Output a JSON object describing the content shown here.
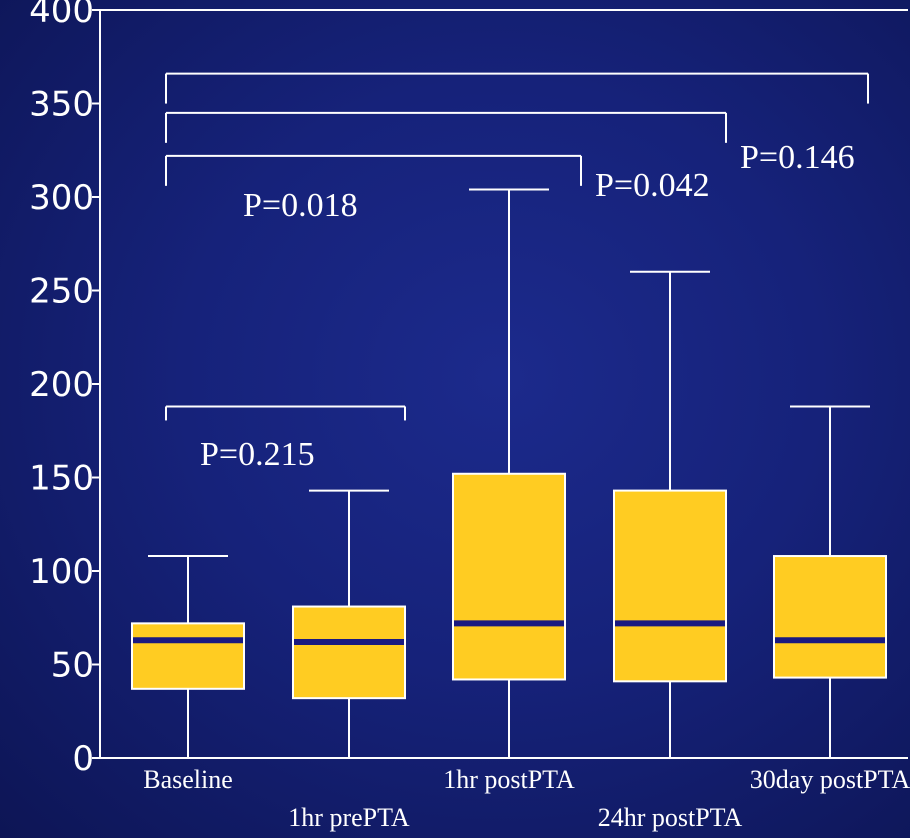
{
  "chart_data": {
    "type": "boxplot",
    "ylim": [
      0,
      400
    ],
    "yticks": [
      "0",
      "50",
      "100",
      "150",
      "200",
      "250",
      "300",
      "350",
      "400"
    ],
    "ytick_values": [
      0,
      50,
      100,
      150,
      200,
      250,
      300,
      350,
      400
    ],
    "categories": [
      "Baseline",
      "1hr prePTA",
      "1hr postPTA",
      "24hr postPTA",
      "30day postPTA"
    ],
    "boxes": [
      {
        "min": 0,
        "q1": 37,
        "median": 63,
        "q3": 72,
        "max": 108
      },
      {
        "min": 0,
        "q1": 32,
        "median": 62,
        "q3": 81,
        "max": 143
      },
      {
        "min": 0,
        "q1": 42,
        "median": 72,
        "q3": 152,
        "max": 304
      },
      {
        "min": 0,
        "q1": 41,
        "median": 72,
        "q3": 143,
        "max": 260
      },
      {
        "min": 0,
        "q1": 43,
        "median": 63,
        "q3": 108,
        "max": 188
      }
    ],
    "colors": {
      "box": "#ffcc22",
      "median": "#1a1a80",
      "lines": "#ffffff",
      "background": "#16227a"
    },
    "comparisons": [
      {
        "from": 0,
        "to": 1,
        "label": "P=0.215",
        "y": 188
      },
      {
        "from": 0,
        "to": 2,
        "label": "P=0.018",
        "y": 322
      },
      {
        "from": 0,
        "to": 3,
        "label": "P=0.042",
        "y": 345
      },
      {
        "from": 0,
        "to": 4,
        "label": "P=0.146",
        "y": 366
      }
    ]
  }
}
